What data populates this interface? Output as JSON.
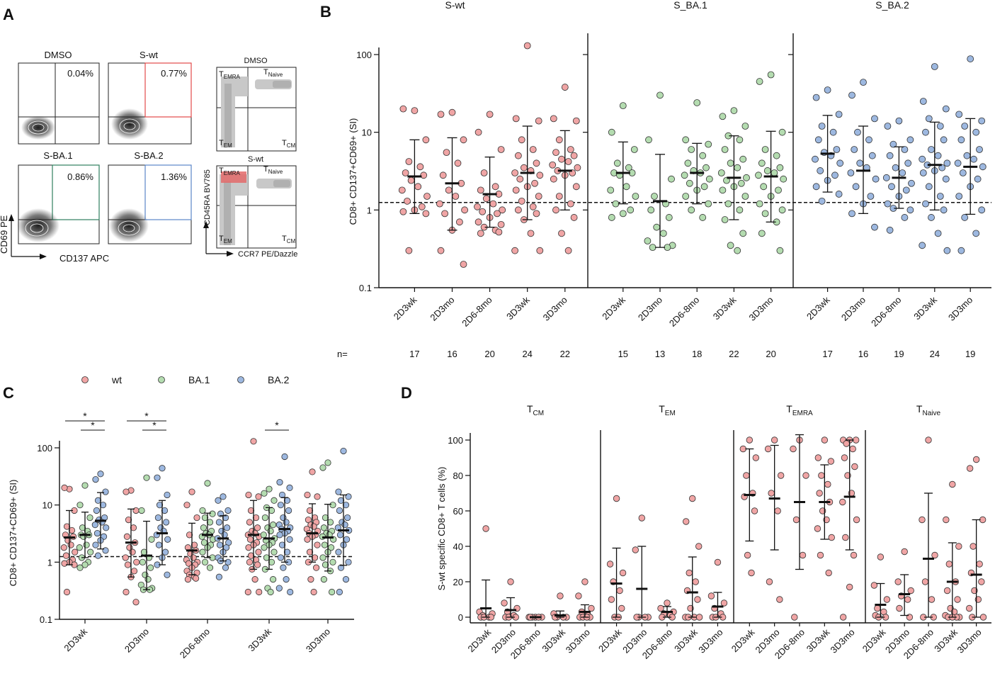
{
  "panels": {
    "A": "A",
    "B": "B",
    "C": "C",
    "D": "D"
  },
  "colors": {
    "wt": "#f0a5a5",
    "ba1": "#b4dcb0",
    "ba2": "#9db8e0",
    "stroke": "#333333",
    "red_gate": "#e34a4a",
    "green_gate": "#2f7f5f",
    "blue_gate": "#5a86c7"
  },
  "flow": {
    "plots": [
      {
        "title": "DMSO",
        "pct": "0.04%",
        "gate": "none"
      },
      {
        "title": "S-wt",
        "pct": "0.77%",
        "gate": "red"
      },
      {
        "title": "S-BA.1",
        "pct": "0.86%",
        "gate": "green"
      },
      {
        "title": "S-BA.2",
        "pct": "1.36%",
        "gate": "blue"
      }
    ],
    "y_label": "CD69 PE",
    "x_label": "CD137 APC"
  },
  "memory_plots": {
    "titles": [
      "DMSO",
      "S-wt"
    ],
    "quadrants": {
      "emra": [
        "T",
        "EMRA"
      ],
      "naive": [
        "T",
        "Naive"
      ],
      "em": [
        "T",
        "EM"
      ],
      "cm": [
        "T",
        "CM"
      ]
    },
    "y_label": "CD45RA BV785",
    "x_label": "CCR7 PE/Dazzle"
  },
  "chart_data": [
    {
      "id": "B",
      "type": "scatter",
      "scale": "log",
      "ylabel": "CD8+ CD137+CD69+ (SI)",
      "ylim": [
        0.1,
        100
      ],
      "yticks": [
        "100",
        "10",
        "1",
        "0.1"
      ],
      "threshold": 1.25,
      "n_prefix": "n=",
      "categories": [
        "2D3wk",
        "2D3mo",
        "2D6-8mo",
        "3D3wk",
        "3D3mo"
      ],
      "groups": [
        {
          "name": "S-wt",
          "color_key": "wt",
          "n": [
            "17",
            "16",
            "20",
            "24",
            "22"
          ],
          "medians": [
            2.7,
            2.2,
            1.6,
            3.0,
            3.2
          ],
          "low": [
            0.9,
            0.55,
            0.6,
            0.75,
            1.0
          ],
          "high": [
            8.0,
            8.5,
            4.8,
            12.0,
            10.5
          ],
          "points": [
            [
              19,
              20,
              8,
              4.2,
              3.6,
              3.0,
              2.8,
              2.4,
              2.0,
              1.8,
              1.5,
              1.3,
              1.1,
              1.0,
              0.95,
              0.9,
              0.3
            ],
            [
              18,
              17,
              8,
              5.5,
              4.0,
              2.8,
              2.2,
              1.8,
              1.5,
              1.2,
              1.0,
              0.9,
              0.7,
              0.55,
              0.3,
              0.2
            ],
            [
              17,
              10,
              6,
              3.0,
              2.0,
              1.8,
              1.6,
              1.4,
              1.2,
              1.1,
              1.0,
              0.95,
              0.9,
              0.8,
              0.7,
              0.65,
              0.6,
              0.55,
              0.5,
              0.52
            ],
            [
              130,
              15,
              14,
              8,
              6,
              5,
              4.0,
              3.5,
              3.2,
              3.0,
              2.8,
              2.5,
              2.2,
              2.0,
              1.8,
              1.5,
              1.3,
              1.1,
              1.0,
              0.9,
              0.75,
              0.5,
              0.3,
              0.3
            ],
            [
              38,
              15,
              14,
              8,
              6,
              5.5,
              5,
              4.5,
              4.2,
              3.8,
              3.5,
              3.2,
              3.0,
              2.8,
              2.5,
              2.0,
              1.5,
              1.2,
              1.0,
              0.8,
              0.5,
              0.3
            ]
          ]
        },
        {
          "name": "S_BA.1",
          "color_key": "ba1",
          "n": [
            "15",
            "13",
            "18",
            "22",
            "20"
          ],
          "medians": [
            3.0,
            1.3,
            3.0,
            2.6,
            2.7
          ],
          "low": [
            1.2,
            0.33,
            1.2,
            0.75,
            0.7
          ],
          "high": [
            7.5,
            5.2,
            7.2,
            9.0,
            10.3
          ],
          "points": [
            [
              22,
              10,
              6,
              4.0,
              3.5,
              3.0,
              3.0,
              2.8,
              2.0,
              1.8,
              1.5,
              1.2,
              1.0,
              0.9,
              0.8
            ],
            [
              30,
              8,
              2.5,
              1.5,
              1.2,
              1.0,
              0.8,
              0.6,
              0.5,
              0.4,
              0.35,
              0.33,
              0.33
            ],
            [
              24,
              8,
              7,
              6,
              5,
              4,
              3.5,
              3.2,
              3.0,
              2.8,
              2.5,
              2.2,
              2.0,
              1.8,
              1.5,
              1.2,
              1.0,
              0.8
            ],
            [
              19,
              16,
              12,
              9,
              8,
              6,
              4.5,
              4,
              3.5,
              3,
              2.6,
              2.4,
              2.2,
              2.0,
              1.8,
              1.5,
              1.2,
              1.0,
              0.75,
              0.5,
              0.35,
              0.3
            ],
            [
              55,
              45,
              10,
              6,
              5,
              4,
              3.5,
              3.2,
              3.0,
              2.8,
              2.5,
              2.0,
              1.8,
              1.5,
              1.2,
              1.0,
              0.9,
              0.7,
              0.5,
              0.3
            ]
          ]
        },
        {
          "name": "S_BA.2",
          "color_key": "ba2",
          "n": [
            "17",
            "16",
            "19",
            "24",
            "19"
          ],
          "medians": [
            5.3,
            3.2,
            2.6,
            3.8,
            3.6
          ],
          "low": [
            1.7,
            0.9,
            1.05,
            1.0,
            0.88
          ],
          "high": [
            16.5,
            12.0,
            6.5,
            13.5,
            15.0
          ],
          "points": [
            [
              35,
              28,
              17,
              12,
              10,
              8,
              6,
              5.5,
              5,
              4.5,
              4,
              3.2,
              2.8,
              2.4,
              2.0,
              1.6,
              1.3
            ],
            [
              44,
              30,
              15,
              10,
              8,
              6,
              5,
              4,
              3.5,
              3,
              2.5,
              2.0,
              1.5,
              1.2,
              0.9,
              0.6
            ],
            [
              14,
              12,
              8,
              7,
              6,
              5,
              4,
              3.5,
              3,
              2.6,
              2.2,
              2.0,
              1.8,
              1.5,
              1.2,
              1.0,
              1.05,
              0.8,
              0.55
            ],
            [
              70,
              25,
              20,
              15,
              12,
              10,
              8,
              6,
              5,
              4.5,
              4,
              3.8,
              3.5,
              3.2,
              3.0,
              2.5,
              2.0,
              1.5,
              1.2,
              1.0,
              0.8,
              0.5,
              0.35,
              0.3
            ],
            [
              88,
              17,
              14,
              12,
              10,
              8,
              6,
              5,
              4.5,
              4,
              3.6,
              3.0,
              2.5,
              2.0,
              1.5,
              1.0,
              0.8,
              0.5,
              0.3
            ]
          ]
        }
      ]
    },
    {
      "id": "C",
      "type": "scatter",
      "scale": "log",
      "ylabel": "CD8+ CD137+CD69+ (SI)",
      "ylim": [
        0.1,
        100
      ],
      "yticks": [
        "100",
        "10",
        "1",
        "0.1"
      ],
      "threshold": 1.25,
      "categories": [
        "2D3wk",
        "2D3mo",
        "2D6-8mo",
        "3D3wk",
        "3D3mo"
      ],
      "legend": [
        {
          "label": "wt",
          "color_key": "wt"
        },
        {
          "label": "BA.1",
          "color_key": "ba1"
        },
        {
          "label": "BA.2",
          "color_key": "ba2"
        }
      ],
      "significance": [
        {
          "category": 0,
          "from": 0,
          "to": 2,
          "level": 1,
          "label": "*"
        },
        {
          "category": 0,
          "from": 1,
          "to": 2,
          "level": 0,
          "label": "*"
        },
        {
          "category": 1,
          "from": 0,
          "to": 2,
          "level": 1,
          "label": "*"
        },
        {
          "category": 1,
          "from": 1,
          "to": 2,
          "level": 0,
          "label": "*"
        },
        {
          "category": 3,
          "from": 1,
          "to": 2,
          "level": 0,
          "label": "*"
        }
      ],
      "series_from": "B"
    },
    {
      "id": "D",
      "type": "scatter",
      "scale": "linear",
      "ylabel": "S-wt specific CD8+ T cells (%)",
      "ylabel_main": "S-wt specific CD8",
      "ylabel_sup": "+",
      "ylabel_rest": " T cells (%)",
      "ylim": [
        0,
        100
      ],
      "yticks": [
        "100",
        "80",
        "60",
        "40",
        "20",
        "0"
      ],
      "categories": [
        "2D3wk",
        "2D3mo",
        "2D6-8mo",
        "3D3wk",
        "3D3mo"
      ],
      "groups": [
        {
          "name": "TCM",
          "main": "T",
          "sub": "CM",
          "medians": [
            5,
            4,
            0,
            1,
            3
          ],
          "low": [
            0,
            0,
            0,
            0,
            0
          ],
          "high": [
            21,
            11,
            0,
            3.5,
            7
          ],
          "points": [
            [
              50,
              3,
              2,
              1,
              0,
              0,
              0,
              0
            ],
            [
              20,
              8,
              5,
              3,
              1,
              0,
              0,
              0
            ],
            [
              0,
              0,
              0,
              0,
              0,
              0
            ],
            [
              12,
              2,
              0,
              0,
              0,
              0
            ],
            [
              20,
              12,
              5,
              3,
              1,
              0,
              0,
              0,
              0
            ]
          ]
        },
        {
          "name": "TEM",
          "main": "T",
          "sub": "EM",
          "medians": [
            19,
            16,
            3,
            14,
            6
          ],
          "low": [
            0,
            0,
            0,
            0,
            0
          ],
          "high": [
            39,
            40,
            6,
            34,
            14
          ],
          "points": [
            [
              67,
              30,
              25,
              20,
              15,
              10,
              5,
              0,
              0
            ],
            [
              56,
              38,
              0,
              0,
              0,
              0
            ],
            [
              8,
              5,
              3,
              2,
              1,
              0,
              0
            ],
            [
              67,
              54,
              40,
              25,
              20,
              15,
              10,
              5,
              0,
              0,
              0,
              0
            ],
            [
              31,
              12,
              8,
              5,
              2,
              0,
              0,
              0
            ]
          ]
        },
        {
          "name": "TEMRA",
          "main": "T",
          "sub": "EMRA",
          "medians": [
            69,
            67,
            65,
            65,
            68
          ],
          "low": [
            43,
            38,
            27,
            44,
            38
          ],
          "high": [
            95,
            97,
            103,
            86,
            100
          ],
          "points": [
            [
              100,
              95,
              90,
              80,
              70,
              68,
              60,
              35,
              25
            ],
            [
              100,
              95,
              80,
              70,
              60,
              20,
              10
            ],
            [
              100,
              95,
              80,
              55,
              35,
              0
            ],
            [
              100,
              90,
              88,
              80,
              75,
              70,
              65,
              60,
              55,
              50,
              45,
              35,
              25
            ],
            [
              100,
              100,
              100,
              98,
              95,
              90,
              85,
              80,
              70,
              65,
              55,
              45,
              35,
              17,
              0
            ]
          ]
        },
        {
          "name": "TNaive",
          "main": "T",
          "sub": "Naive",
          "medians": [
            7,
            13,
            33,
            20,
            24
          ],
          "low": [
            0,
            1,
            0,
            0,
            0
          ],
          "high": [
            19,
            24,
            70,
            42,
            55
          ],
          "points": [
            [
              34,
              18,
              10,
              5,
              3,
              1,
              0,
              0
            ],
            [
              37,
              20,
              15,
              12,
              10,
              5,
              0
            ],
            [
              100,
              55,
              35,
              20,
              10,
              0,
              0
            ],
            [
              75,
              55,
              40,
              30,
              20,
              15,
              10,
              5,
              3,
              1,
              0,
              0,
              0,
              0
            ],
            [
              89,
              84,
              55,
              40,
              30,
              25,
              20,
              15,
              10,
              5,
              0,
              0
            ]
          ]
        }
      ]
    }
  ]
}
